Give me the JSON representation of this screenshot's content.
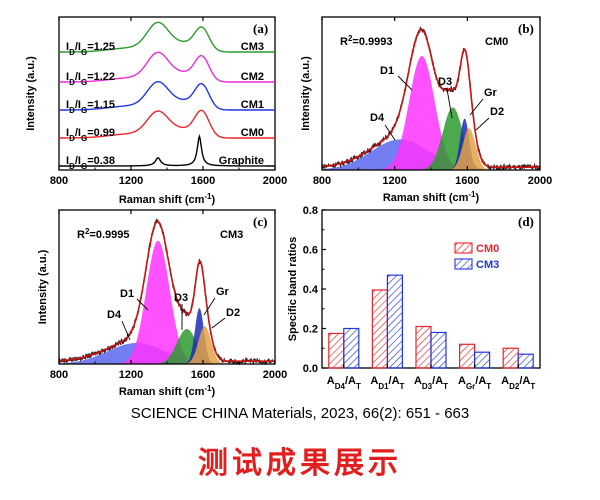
{
  "citation": "SCIENCE CHINA Materials,  2023, 66(2): 651 - 663",
  "caption": "测试成果展示",
  "colors": {
    "black": "#000000",
    "red": "#e8262a",
    "blue": "#1f37e0",
    "magenta": "#e82bd6",
    "green": "#2a9a2a",
    "D4": "#5b67ef",
    "D1": "#ff33ff",
    "D3": "#2e9a2e",
    "Gr": "#1c2db5",
    "D2": "#e3a246",
    "fit": "#c81616",
    "data": "#3a1a1a"
  },
  "chart_data": [
    {
      "panel": "(a)",
      "type": "line",
      "xlabel": "Raman shift (cm-1)",
      "ylabel": "Intensity (a.u.)",
      "xlim": [
        800,
        2000
      ],
      "xticks": [
        800,
        1200,
        1600,
        2000
      ],
      "series": [
        {
          "name": "Graphite",
          "ratio_label": "ID/IG=0.38",
          "color": "#000000",
          "D_height": 0.06,
          "G_height": 0.22,
          "G_center": 1580,
          "G_width": 14
        },
        {
          "name": "CM0",
          "ratio_label": "ID/IG=0.99",
          "color": "#e8262a",
          "D_height": 0.18,
          "G_height": 0.18,
          "G_center": 1595,
          "G_width": 40
        },
        {
          "name": "CM1",
          "ratio_label": "ID/IG=1.15",
          "color": "#1f37e0",
          "D_height": 0.19,
          "G_height": 0.17,
          "G_center": 1595,
          "G_width": 40
        },
        {
          "name": "CM2",
          "ratio_label": "ID/IG=1.22",
          "color": "#e82bd6",
          "D_height": 0.2,
          "G_height": 0.17,
          "G_center": 1595,
          "G_width": 40
        },
        {
          "name": "CM3",
          "ratio_label": "ID/IG=1.25",
          "color": "#2a9a2a",
          "D_height": 0.2,
          "G_height": 0.16,
          "G_center": 1595,
          "G_width": 40
        }
      ]
    },
    {
      "panel": "(b)",
      "type": "area",
      "sample": "CM0",
      "r2": "R2=0.9993",
      "xlabel": "Raman shift (cm-1)",
      "ylabel": "Intensity (a.u.)",
      "xlim": [
        800,
        2000
      ],
      "xticks": [
        800,
        1200,
        1600,
        2000
      ],
      "ylim": [
        0,
        1.1
      ],
      "peaks": [
        {
          "name": "D4",
          "center": 1230,
          "width": 160,
          "height": 0.22
        },
        {
          "name": "D1",
          "center": 1350,
          "width": 70,
          "height": 0.82
        },
        {
          "name": "D3",
          "center": 1520,
          "width": 55,
          "height": 0.45
        },
        {
          "name": "Gr",
          "center": 1585,
          "width": 25,
          "height": 0.37
        },
        {
          "name": "D2",
          "center": 1610,
          "width": 35,
          "height": 0.3
        }
      ]
    },
    {
      "panel": "(c)",
      "type": "area",
      "sample": "CM3",
      "r2": "R2=0.9995",
      "xlabel": "Raman shift (cm-1)",
      "ylabel": "Intensity (a.u.)",
      "xlim": [
        800,
        2000
      ],
      "xticks": [
        800,
        1200,
        1600,
        2000
      ],
      "ylim": [
        0,
        1.1
      ],
      "peaks": [
        {
          "name": "D4",
          "center": 1230,
          "width": 160,
          "height": 0.15
        },
        {
          "name": "D1",
          "center": 1350,
          "width": 65,
          "height": 0.88
        },
        {
          "name": "D3",
          "center": 1510,
          "width": 55,
          "height": 0.25
        },
        {
          "name": "Gr",
          "center": 1580,
          "width": 25,
          "height": 0.4
        },
        {
          "name": "D2",
          "center": 1610,
          "width": 35,
          "height": 0.27
        }
      ]
    },
    {
      "panel": "(d)",
      "type": "bar",
      "xlabel": "",
      "ylabel": "Specific band ratios",
      "ylim": [
        0,
        0.8
      ],
      "yticks": [
        "0.0",
        "0.2",
        "0.4",
        "0.6",
        "0.8"
      ],
      "categories": [
        "AD4/AT",
        "AD1/AT",
        "AD3/AT",
        "AGr/AT",
        "AD2/AT"
      ],
      "category_labels": [
        [
          "A",
          "D4",
          "/A",
          "T"
        ],
        [
          "A",
          "D1",
          "/A",
          "T"
        ],
        [
          "A",
          "D3",
          "/A",
          "T"
        ],
        [
          "A",
          "Gr",
          "/A",
          "T"
        ],
        [
          "A",
          "D2",
          "/A",
          "T"
        ]
      ],
      "legend_position": "top-right",
      "series": [
        {
          "name": "CM0",
          "color": "#e8262a",
          "values": [
            0.175,
            0.395,
            0.21,
            0.12,
            0.1
          ]
        },
        {
          "name": "CM3",
          "color": "#1f37e0",
          "values": [
            0.2,
            0.47,
            0.18,
            0.08,
            0.07
          ]
        }
      ]
    }
  ]
}
